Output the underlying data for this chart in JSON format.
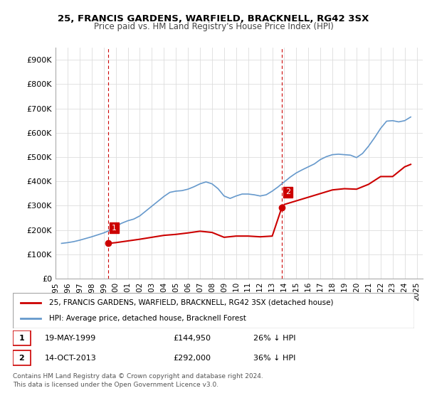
{
  "title1": "25, FRANCIS GARDENS, WARFIELD, BRACKNELL, RG42 3SX",
  "title2": "Price paid vs. HM Land Registry's House Price Index (HPI)",
  "ylabel": "",
  "ylim": [
    0,
    950000
  ],
  "yticks": [
    0,
    100000,
    200000,
    300000,
    400000,
    500000,
    600000,
    700000,
    800000,
    900000
  ],
  "ytick_labels": [
    "£0",
    "£100K",
    "£200K",
    "£300K",
    "£400K",
    "£500K",
    "£600K",
    "£700K",
    "£800K",
    "£900K"
  ],
  "background_color": "#ffffff",
  "grid_color": "#dddddd",
  "hpi_color": "#6699cc",
  "sale_color": "#cc0000",
  "vline_color": "#cc0000",
  "sale_points": [
    {
      "year": 1999.38,
      "price": 144950,
      "label": "1"
    },
    {
      "year": 2013.79,
      "price": 292000,
      "label": "2"
    }
  ],
  "legend_sale_label": "25, FRANCIS GARDENS, WARFIELD, BRACKNELL, RG42 3SX (detached house)",
  "legend_hpi_label": "HPI: Average price, detached house, Bracknell Forest",
  "footnote_label1": "1",
  "footnote_date1": "19-MAY-1999",
  "footnote_price1": "£144,950",
  "footnote_pct1": "26% ↓ HPI",
  "footnote_label2": "2",
  "footnote_date2": "14-OCT-2013",
  "footnote_price2": "£292,000",
  "footnote_pct2": "36% ↓ HPI",
  "copyright": "Contains HM Land Registry data © Crown copyright and database right 2024.\nThis data is licensed under the Open Government Licence v3.0.",
  "hpi_data": {
    "years": [
      1995.5,
      1996.0,
      1996.5,
      1997.0,
      1997.5,
      1998.0,
      1998.5,
      1999.0,
      1999.38,
      1999.5,
      2000.0,
      2000.5,
      2001.0,
      2001.5,
      2002.0,
      2002.5,
      2003.0,
      2003.5,
      2004.0,
      2004.5,
      2005.0,
      2005.5,
      2006.0,
      2006.5,
      2007.0,
      2007.5,
      2008.0,
      2008.5,
      2009.0,
      2009.5,
      2010.0,
      2010.5,
      2011.0,
      2011.5,
      2012.0,
      2012.5,
      2013.0,
      2013.5,
      2013.79,
      2014.0,
      2014.5,
      2015.0,
      2015.5,
      2016.0,
      2016.5,
      2017.0,
      2017.5,
      2018.0,
      2018.5,
      2019.0,
      2019.5,
      2020.0,
      2020.5,
      2021.0,
      2021.5,
      2022.0,
      2022.5,
      2023.0,
      2023.5,
      2024.0,
      2024.5
    ],
    "values": [
      145000,
      148000,
      152000,
      158000,
      165000,
      172000,
      180000,
      188000,
      196000,
      200000,
      215000,
      228000,
      238000,
      245000,
      258000,
      278000,
      298000,
      318000,
      338000,
      355000,
      360000,
      362000,
      368000,
      378000,
      390000,
      398000,
      390000,
      370000,
      340000,
      330000,
      340000,
      348000,
      348000,
      345000,
      340000,
      345000,
      360000,
      378000,
      390000,
      398000,
      418000,
      435000,
      448000,
      460000,
      472000,
      490000,
      502000,
      510000,
      512000,
      510000,
      508000,
      498000,
      515000,
      545000,
      580000,
      618000,
      648000,
      650000,
      645000,
      650000,
      665000
    ],
    "sale_line_years": [
      1999.38,
      2000.0,
      2001.0,
      2002.0,
      2003.0,
      2004.0,
      2005.0,
      2006.0,
      2007.0,
      2008.0,
      2009.0,
      2010.0,
      2011.0,
      2012.0,
      2013.0,
      2013.79,
      2014.0,
      2015.0,
      2016.0,
      2017.0,
      2018.0,
      2019.0,
      2020.0,
      2021.0,
      2022.0,
      2023.0,
      2024.0,
      2024.5
    ],
    "sale_line_values": [
      144950,
      148000,
      155000,
      162000,
      170000,
      178000,
      182000,
      188000,
      195000,
      190000,
      170000,
      175000,
      175000,
      172000,
      175000,
      292000,
      305000,
      320000,
      335000,
      350000,
      365000,
      370000,
      368000,
      388000,
      420000,
      420000,
      460000,
      470000
    ]
  },
  "xlim": [
    1995.0,
    2025.5
  ],
  "xtick_years": [
    1995,
    1996,
    1997,
    1998,
    1999,
    2000,
    2001,
    2002,
    2003,
    2004,
    2005,
    2006,
    2007,
    2008,
    2009,
    2010,
    2011,
    2012,
    2013,
    2014,
    2015,
    2016,
    2017,
    2018,
    2019,
    2020,
    2021,
    2022,
    2023,
    2024,
    2025
  ]
}
